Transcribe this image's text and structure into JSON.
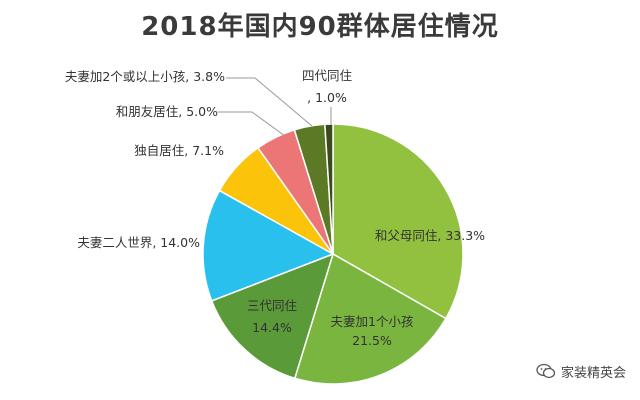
{
  "chart_data": {
    "type": "pie",
    "title": "2018年国内90群体居住情况",
    "start": "12 o'clock",
    "direction": "clockwise",
    "slices": [
      {
        "name": "和父母同住",
        "value": 33.3,
        "label": "和父母同住, 33.3%",
        "color": "#92c13f"
      },
      {
        "name": "夫妻加1个小孩",
        "value": 21.5,
        "label": "夫妻加1个小孩, 21.5%",
        "color": "#7ab540"
      },
      {
        "name": "三代同住",
        "value": 14.4,
        "label": "三代同住, 14.4%",
        "color": "#5a9a38"
      },
      {
        "name": "夫妻二人世界",
        "value": 14.0,
        "label": "夫妻二人世界, 14.0%",
        "color": "#29c0ee"
      },
      {
        "name": "独自居住",
        "value": 7.1,
        "label": "独自居住, 7.1%",
        "color": "#fcc30b"
      },
      {
        "name": "和朋友居住",
        "value": 5.0,
        "label": "和朋友居住, 5.0%",
        "color": "#ec7575"
      },
      {
        "name": "夫妻加2个或以上小孩",
        "value": 3.8,
        "label": "夫妻加2个或以上小孩, 3.8%",
        "color": "#5c7a25"
      },
      {
        "name": "四代同住",
        "value": 1.0,
        "label": "四代同住, 1.0%",
        "color": "#3a4a1e"
      }
    ]
  },
  "watermark": {
    "text": "家装精英会"
  }
}
